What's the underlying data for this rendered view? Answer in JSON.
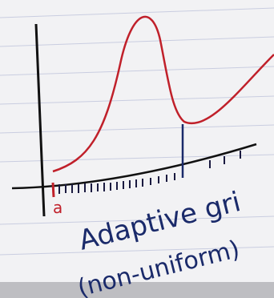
{
  "sketch": {
    "point_label": "a",
    "caption_line1": "Adaptive gri",
    "caption_line2": "(non-uniform)"
  }
}
